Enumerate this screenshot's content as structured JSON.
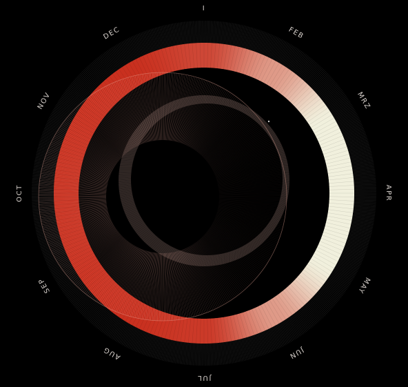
{
  "chart_data": {
    "type": "radial",
    "categories": [
      "I",
      "FEB",
      "MRZ",
      "APR",
      "MAY",
      "JUN",
      "JUL",
      "AUG",
      "SEP",
      "OCT",
      "NOV",
      "DEC"
    ],
    "series": [
      {
        "values": [
          0.12,
          0.55,
          1.0,
          1.0,
          1.0,
          0.55,
          0.05,
          0.0,
          0.0,
          0.0,
          0.0,
          0.0
        ]
      }
    ],
    "ylim": [
      0,
      1
    ],
    "colors": {
      "background": "#000000",
      "low": "#c9301f",
      "high": "#f1f0dd",
      "low_dark": "#5c1410",
      "high_dark": "#8f8d7a",
      "outer_ticks": "#4a4a4a",
      "pink_ticks": "#e8a89a",
      "shadow": "#2a2220",
      "label": "#d9d2cd"
    }
  }
}
